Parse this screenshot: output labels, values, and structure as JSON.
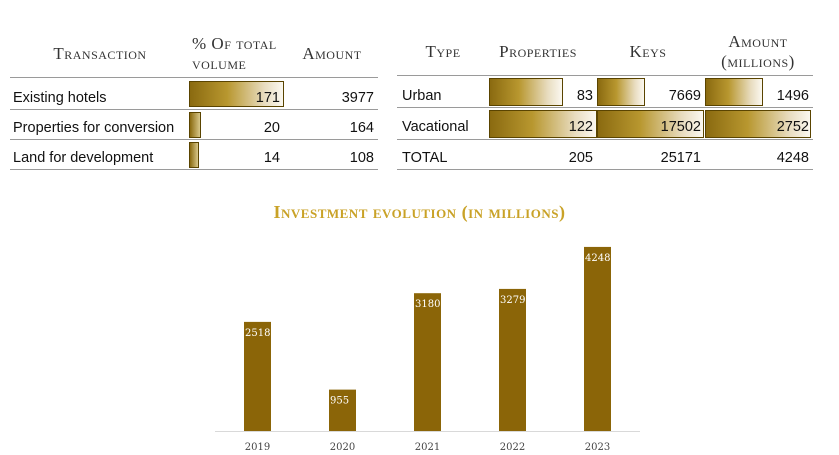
{
  "left_table": {
    "headers": {
      "transaction": "Transaction",
      "pct": "% Of total volume",
      "amount": "Amount"
    },
    "rows": [
      {
        "label": "Existing hotels",
        "volume": 171,
        "amount": 3977
      },
      {
        "label": "Properties for conversion",
        "volume": 20,
        "amount": 164
      },
      {
        "label": "Land for development",
        "volume": 14,
        "amount": 108
      }
    ]
  },
  "right_table": {
    "headers": {
      "type": "Type",
      "properties": "Properties",
      "keys": "Keys",
      "amount": "Amount (millions)"
    },
    "rows": [
      {
        "label": "Urban",
        "properties": 83,
        "keys": 7669,
        "amount": 1496
      },
      {
        "label": "Vacational",
        "properties": 122,
        "keys": 17502,
        "amount": 2752
      }
    ],
    "total": {
      "label": "TOTAL",
      "properties": 205,
      "keys": 25171,
      "amount": 4248
    }
  },
  "chart_data": {
    "type": "bar",
    "title": "Investment evolution (in millions)",
    "categories": [
      "2019",
      "2020",
      "2021",
      "2022",
      "2023"
    ],
    "values": [
      2518,
      955,
      3180,
      3279,
      4248
    ],
    "ylim": [
      0,
      4500
    ],
    "grid": false,
    "legend": "none",
    "colors": {
      "bar": "#8b6508",
      "label": "#ffffff",
      "title": "#c9a227"
    }
  }
}
